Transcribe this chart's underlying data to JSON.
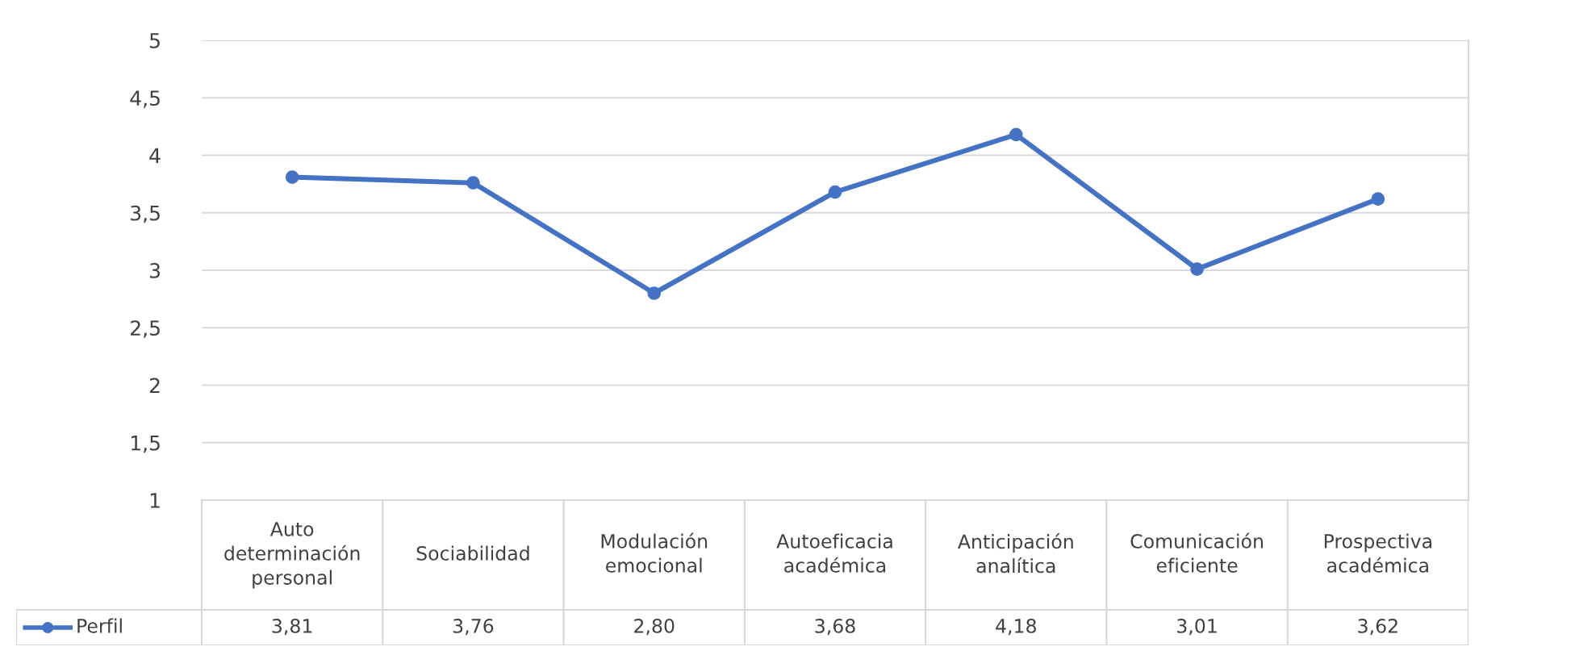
{
  "chart_data": {
    "type": "line",
    "categories": [
      "Auto\ndeterminación\npersonal",
      "Sociabilidad",
      "Modulación\nemocional",
      "Autoeficacia\nacadémica",
      "Anticipación\nanalítica",
      "Comunicación\neficiente",
      "Prospectiva\nacadémica"
    ],
    "series": [
      {
        "name": "Perfil",
        "color": "#4472c4",
        "values": [
          3.81,
          3.76,
          2.8,
          3.68,
          4.18,
          3.01,
          3.62
        ],
        "value_labels": [
          "3,81",
          "3,76",
          "2,80",
          "3,68",
          "4,18",
          "3,01",
          "3,62"
        ]
      }
    ],
    "ylim": [
      1,
      5
    ],
    "yticks": [
      {
        "value": 1,
        "label": "1"
      },
      {
        "value": 1.5,
        "label": "1,5"
      },
      {
        "value": 2,
        "label": "2"
      },
      {
        "value": 2.5,
        "label": "2,5"
      },
      {
        "value": 3,
        "label": "3"
      },
      {
        "value": 3.5,
        "label": "3,5"
      },
      {
        "value": 4,
        "label": "4"
      },
      {
        "value": 4.5,
        "label": "4,5"
      },
      {
        "value": 5,
        "label": "5"
      }
    ],
    "grid": "y",
    "legend": "bottom",
    "marker": "circle",
    "line_style": "solid"
  }
}
